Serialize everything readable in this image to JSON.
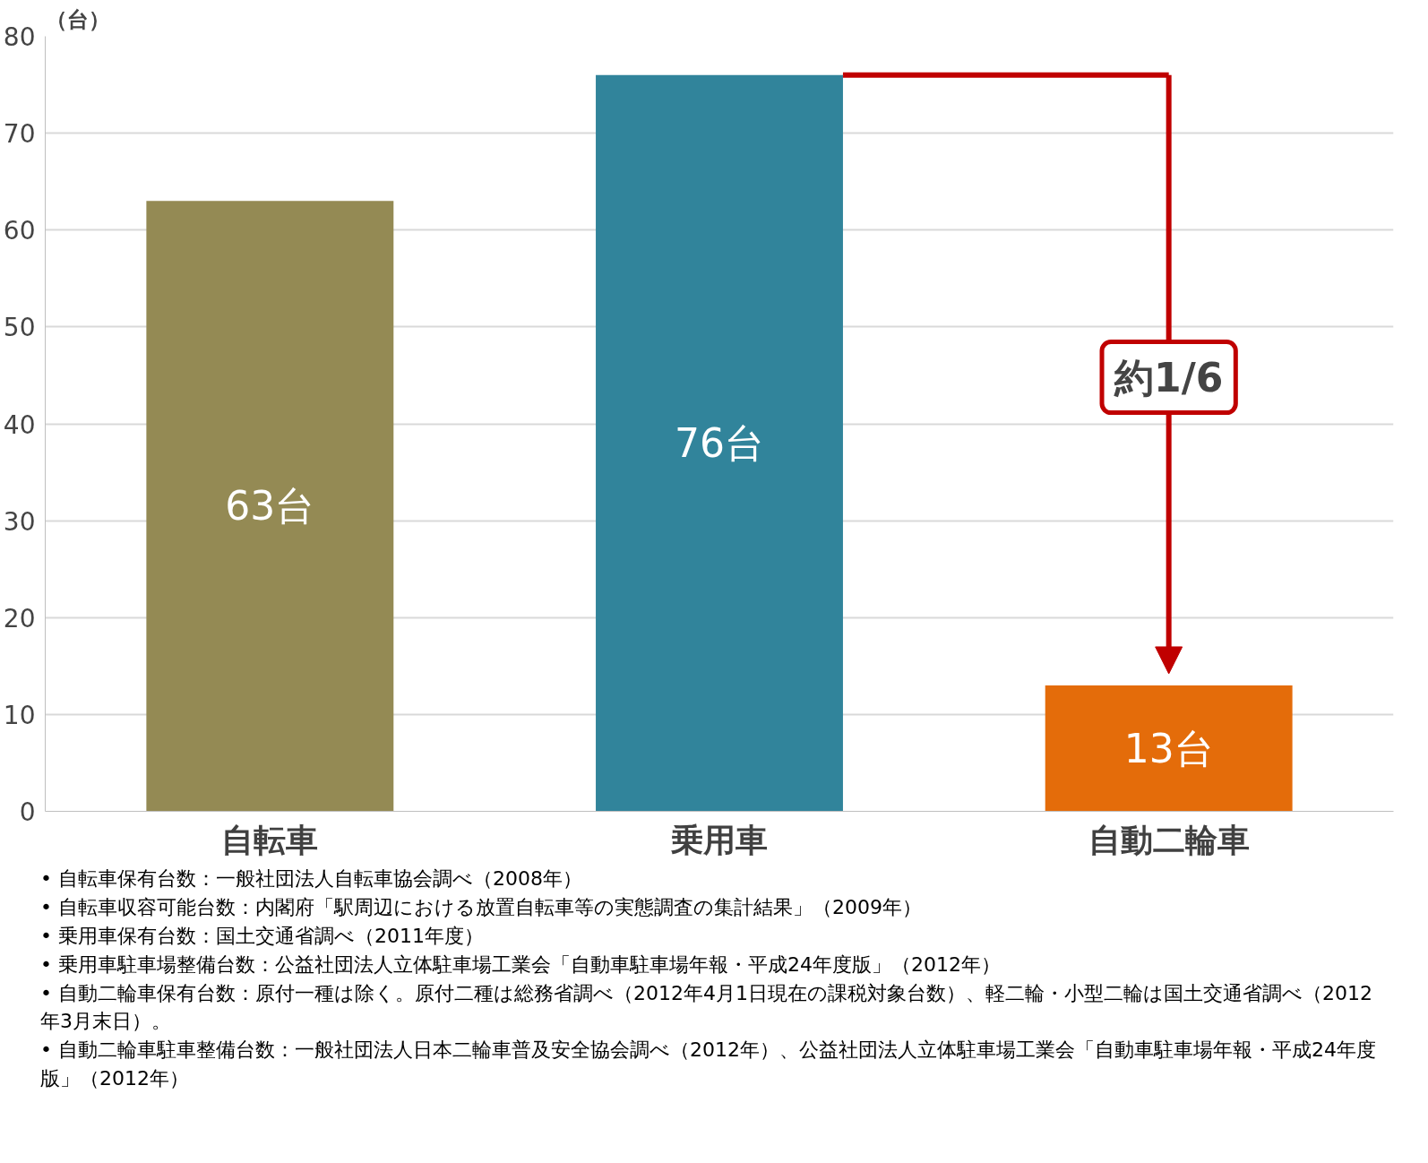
{
  "chart_data": {
    "type": "bar",
    "ylabel": "（台）",
    "categories": [
      "自転車",
      "乗用車",
      "自動二輪車"
    ],
    "values": [
      63,
      76,
      13
    ],
    "colors": [
      "#948a54",
      "#31849b",
      "#e46c0a"
    ],
    "value_labels": [
      "63台",
      "76台",
      "13台"
    ],
    "ylim": [
      0,
      80
    ],
    "yticks": [
      0,
      10,
      20,
      30,
      40,
      50,
      60,
      70,
      80
    ],
    "grid": "y",
    "annotations": [
      "約1/6",
      "• 自転車保有台数：一般社団法人自転車協会調べ（2008年）",
      "• 自転車収容可能台数：内閣府「駅周辺における放置自転車等の実態調査の集計結果」（2009年）",
      "• 乗用車保有台数：国土交通省調べ（2011年度）",
      "• 乗用車駐車場整備台数：公益社団法人立体駐車場工業会「自動車駐車場年報・平成24年度版」（2012年）",
      "• 自動二輪車保有台数：原付一種は除く。原付二種は総務省調べ（2012年4月1日現在の課税対象台数）、軽二輪・小型二輪は国土交通省調べ（2012年3月末日）。",
      "• 自動二輪車駐車整備台数：一般社団法人日本二輪車普及安全協会調べ（2012年）、公益社団法人立体駐車場工業会「自動車駐車場年報・平成24年度版」（2012年）"
    ]
  }
}
